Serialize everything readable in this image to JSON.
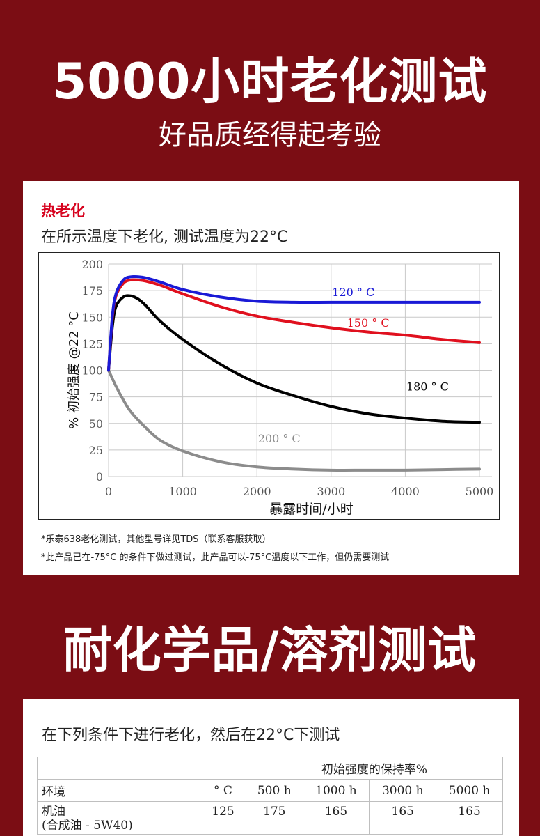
{
  "header": {
    "title": "5000小时老化测试",
    "subtitle": "好品质经得起考验"
  },
  "card1": {
    "label": "热老化",
    "description": "在所示温度下老化, 测试温度为22°C",
    "notes": [
      "*乐泰638老化测试，其他型号详见TDS（联系客服获取）",
      "*此产品已在-75°C 的条件下做过测试，此产品可以-75°C温度以下工作，但仍需要测试"
    ]
  },
  "chart_data": {
    "type": "line",
    "title": "",
    "xlabel": "暴露时间/小时",
    "ylabel": "% 初始强度 @22 °C",
    "xlim": [
      0,
      5000
    ],
    "ylim": [
      0,
      200
    ],
    "xticks": [
      0,
      1000,
      2000,
      3000,
      4000,
      5000
    ],
    "yticks": [
      0,
      25,
      50,
      75,
      100,
      125,
      150,
      175,
      200
    ],
    "grid": true,
    "series": [
      {
        "name": "120 ° C",
        "color": "#1a1ad6",
        "x": [
          0,
          50,
          100,
          200,
          300,
          400,
          500,
          700,
          1000,
          1500,
          2000,
          2500,
          3000,
          3500,
          4000,
          4500,
          5000
        ],
        "y": [
          100,
          150,
          172,
          185,
          188,
          188,
          187,
          183,
          176,
          169,
          165,
          164,
          164,
          164,
          164,
          164,
          164
        ]
      },
      {
        "name": "150 ° C",
        "color": "#e0101e",
        "x": [
          0,
          50,
          100,
          200,
          300,
          400,
          500,
          700,
          1000,
          1500,
          2000,
          2500,
          3000,
          3500,
          4000,
          4500,
          5000
        ],
        "y": [
          100,
          148,
          170,
          182,
          185,
          185,
          184,
          180,
          172,
          160,
          151,
          145,
          140,
          136,
          133,
          129,
          126
        ]
      },
      {
        "name": "180 ° C",
        "color": "#000000",
        "x": [
          0,
          50,
          100,
          200,
          300,
          400,
          500,
          700,
          1000,
          1500,
          2000,
          2500,
          3000,
          3500,
          4000,
          4500,
          5000
        ],
        "y": [
          100,
          140,
          160,
          169,
          170,
          167,
          161,
          146,
          129,
          106,
          88,
          76,
          66,
          59,
          55,
          52,
          51
        ]
      },
      {
        "name": "200 ° C",
        "color": "#8c8c8c",
        "x": [
          0,
          100,
          200,
          300,
          500,
          700,
          1000,
          1500,
          2000,
          2500,
          3000,
          3500,
          4000,
          4500,
          5000
        ],
        "y": [
          100,
          85,
          72,
          61,
          46,
          34,
          24,
          14,
          9,
          7,
          6,
          6,
          6,
          6.5,
          7
        ]
      }
    ]
  },
  "title2": "耐化学品/溶剂测试",
  "card2": {
    "description": "在下列条件下进行老化，然后在22°C下测试",
    "table": {
      "group_header": "初始强度的保持率%",
      "columns": [
        "环境",
        "° C",
        "500 h",
        "1000 h",
        "3000 h",
        "5000 h"
      ],
      "rows": [
        {
          "env_line1": "机油",
          "env_line2": "(合成油 - 5W40)",
          "temp": "125",
          "v500": "175",
          "v1000": "165",
          "v3000": "165",
          "v5000": "165"
        }
      ]
    }
  }
}
